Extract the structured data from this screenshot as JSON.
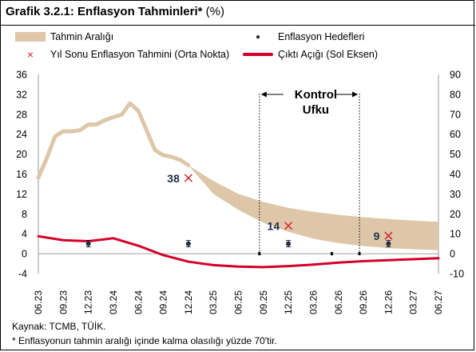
{
  "header": {
    "title": "Grafik 3.2.1: Enflasyon Tahminleri*",
    "unit": "(%)"
  },
  "legend": {
    "band": "Tahmin Aralığı",
    "target": "Enflasyon Hedefleri",
    "point": "Yıl Sonu Enflasyon Tahmini (Orta Nokta)",
    "gap": "Çıktı Açığı (Sol Eksen)"
  },
  "colors": {
    "band": "#ddc7a8",
    "gap": "#d4002a",
    "point": "#d9212c",
    "target": "#1f2d4a"
  },
  "chart_data": {
    "type": "line",
    "x_ticks": [
      "06.23",
      "09.23",
      "12.23",
      "03.24",
      "06.24",
      "09.24",
      "12.24",
      "03.25",
      "06.25",
      "09.25",
      "12.25",
      "03.26",
      "06.26",
      "09.26",
      "12.26",
      "03.27",
      "06.27"
    ],
    "y_left": {
      "ticks": [
        -4,
        0,
        4,
        8,
        12,
        16,
        20,
        24,
        28,
        32,
        36
      ],
      "lim": [
        -4,
        36
      ]
    },
    "y_right": {
      "ticks": [
        -10,
        0,
        10,
        20,
        30,
        40,
        50,
        60,
        70,
        80,
        90
      ],
      "lim": [
        -10,
        90
      ]
    },
    "grid": false,
    "inflation_actual": {
      "x": [
        "06.23",
        "07.23",
        "08.23",
        "09.23",
        "10.23",
        "11.23",
        "12.23",
        "01.24",
        "02.24",
        "03.24",
        "04.24",
        "05.24",
        "06.24",
        "07.24",
        "08.24",
        "09.24",
        "10.24",
        "11.24",
        "12.24"
      ],
      "y": [
        38.2,
        47.8,
        58.9,
        61.5,
        61.4,
        62.0,
        64.8,
        64.9,
        67.1,
        68.5,
        69.8,
        75.5,
        71.6,
        61.8,
        52.0,
        49.4,
        48.6,
        47.1,
        44.4
      ]
    },
    "forecast_band": {
      "x": [
        "12.24",
        "03.25",
        "06.25",
        "09.25",
        "12.25",
        "03.26",
        "06.26",
        "09.26",
        "12.26",
        "03.27",
        "06.27"
      ],
      "upper": [
        44.4,
        36.5,
        30.0,
        26.0,
        23.0,
        21.0,
        19.5,
        18.3,
        17.4,
        16.6,
        16.0
      ],
      "lower": [
        44.4,
        30.0,
        22.0,
        15.5,
        11.0,
        7.5,
        5.3,
        3.8,
        2.8,
        2.2,
        1.8
      ]
    },
    "year_end_forecasts": [
      {
        "x": "12.24",
        "value": 38,
        "label": "38"
      },
      {
        "x": "12.25",
        "value": 14,
        "label": "14"
      },
      {
        "x": "12.26",
        "value": 9,
        "label": "9"
      }
    ],
    "inflation_targets": [
      {
        "x": "12.23",
        "value": 5
      },
      {
        "x": "12.24",
        "value": 5
      },
      {
        "x": "12.25",
        "value": 5
      },
      {
        "x": "12.26",
        "value": 5
      }
    ],
    "output_gap": {
      "x": [
        "06.23",
        "09.23",
        "12.23",
        "03.24",
        "06.24",
        "09.24",
        "12.24",
        "03.25",
        "06.25",
        "09.25",
        "12.25",
        "03.26",
        "06.26",
        "09.26",
        "12.26",
        "03.27",
        "06.27"
      ],
      "y": [
        3.5,
        2.7,
        2.5,
        3.1,
        1.6,
        -0.3,
        -1.6,
        -2.3,
        -2.6,
        -2.7,
        -2.5,
        -2.2,
        -1.8,
        -1.5,
        -1.3,
        -1.1,
        -0.9
      ]
    },
    "control_horizon": {
      "label_line1": "Kontrol",
      "label_line2": "Ufku",
      "start": "09.25",
      "end": "09.26"
    }
  },
  "footer": {
    "source": "Kaynak: TCMB, TÜİK.",
    "note": "* Enflasyonun tahmin aralığı içinde kalma olasılığı yüzde 70'tir."
  }
}
